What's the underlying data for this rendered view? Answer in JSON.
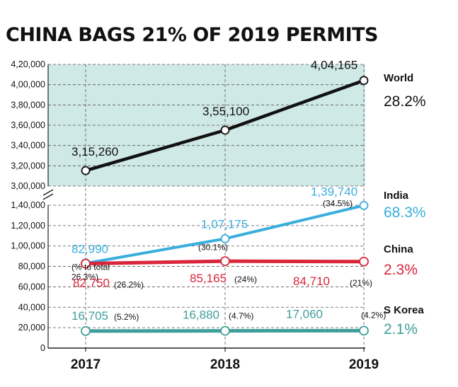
{
  "chart_data": {
    "type": "line",
    "title": "CHINA BAGS 21% OF 2019 PERMITS",
    "x": [
      "2017",
      "2018",
      "2019"
    ],
    "y_ticks_upper": [
      "4,20,000",
      "4,00,000",
      "3,80,000",
      "3,60,000",
      "3,40,000",
      "3,20,000",
      "3,00,000"
    ],
    "y_ticks_lower": [
      "1,40,000",
      "1,20,000",
      "1,00,000",
      "80,000",
      "60,000",
      "40,000",
      "20,000",
      "0"
    ],
    "ylim_upper": [
      300000,
      420000
    ],
    "ylim_lower": [
      0,
      140000
    ],
    "axis_break": true,
    "share_note": "(% to total",
    "series": [
      {
        "name": "World",
        "values": [
          315260,
          355100,
          404165
        ],
        "labels": [
          "3,15,260",
          "3,55,100",
          "4,04,165"
        ],
        "shares": [
          "",
          "",
          ""
        ],
        "change": "28.2%",
        "color": "#111111",
        "label_color": "#111111"
      },
      {
        "name": "India",
        "values": [
          82990,
          107175,
          139740
        ],
        "labels": [
          "82,990",
          "1,07,175",
          "1,39,740"
        ],
        "shares": [
          "26.3%)",
          "(30.1%)",
          "(34.5%)"
        ],
        "change": "68.3%",
        "color": "#3aaedc",
        "label_color": "#3aaedc"
      },
      {
        "name": "China",
        "values": [
          82750,
          85165,
          84710
        ],
        "labels": [
          "82,750",
          "85,165",
          "84,710"
        ],
        "shares": [
          "(26.2%)",
          "(24%)",
          "(21%)"
        ],
        "change": "2.3%",
        "color": "#d9263a",
        "label_color": "#d9263a"
      },
      {
        "name": "S Korea",
        "values": [
          16705,
          16880,
          17060
        ],
        "labels": [
          "16,705",
          "16,880",
          "17,060"
        ],
        "shares": [
          "(5.2%)",
          "(4.7%)",
          "(4.2%)"
        ],
        "change": "2.1%",
        "color": "#3f9e9a",
        "label_color": "#3f9e9a"
      }
    ],
    "colors": {
      "upper_panel_bg": "#cfe9e6",
      "grid": "#555555"
    },
    "grid": true,
    "legend": "right"
  }
}
